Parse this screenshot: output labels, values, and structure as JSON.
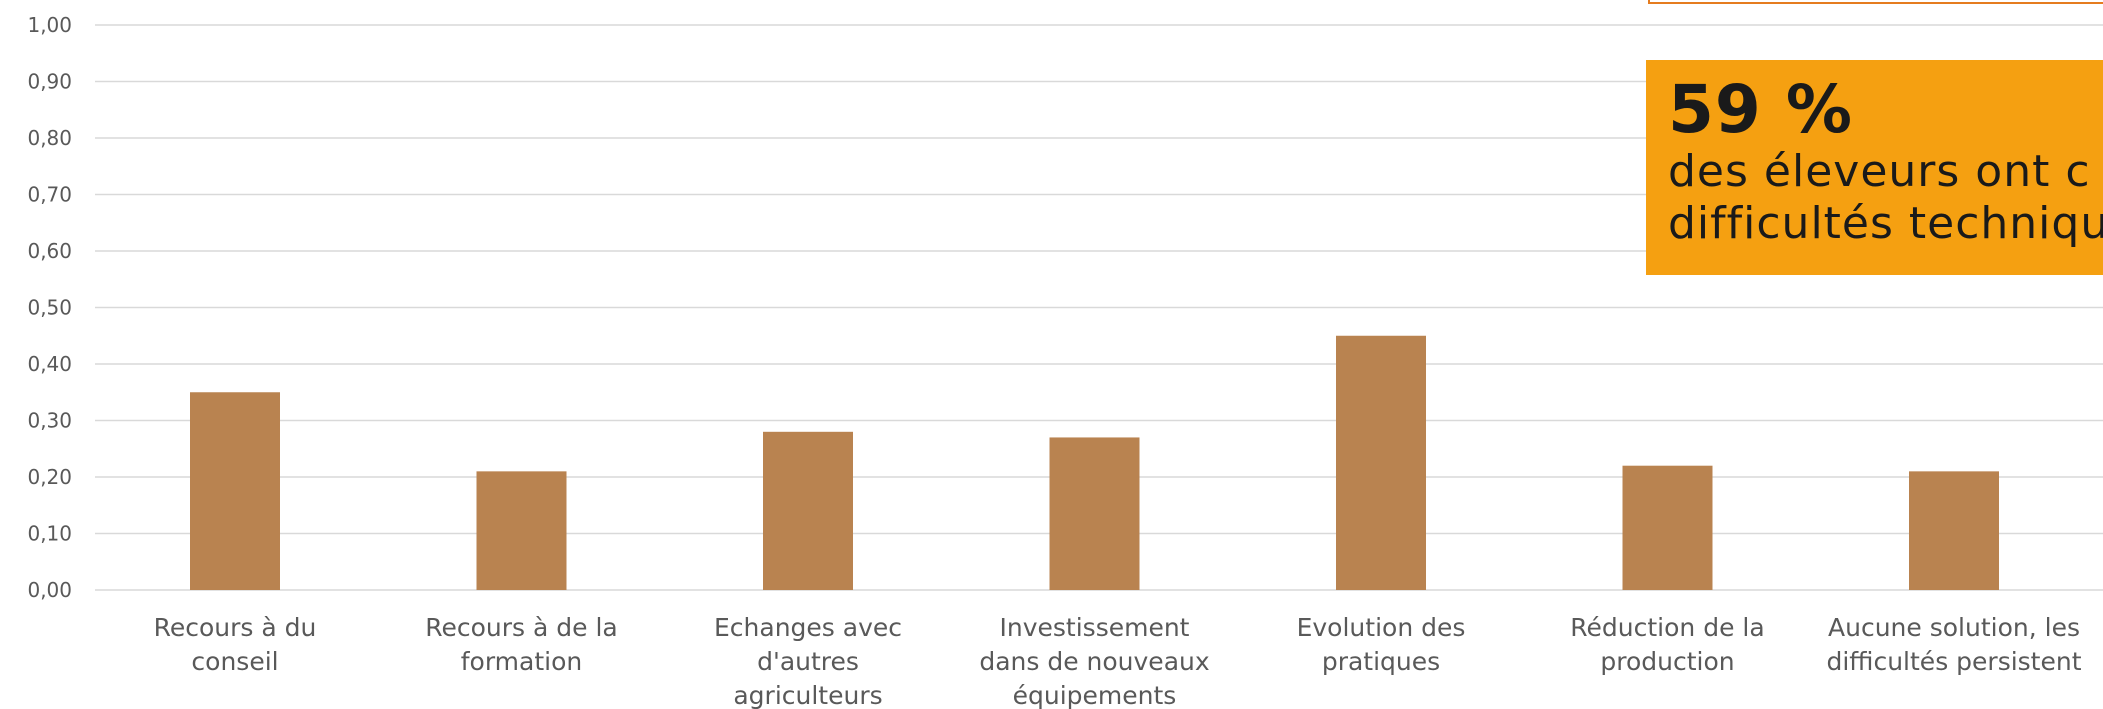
{
  "chart_data": {
    "type": "bar",
    "categories": [
      [
        "Recours à du",
        "conseil"
      ],
      [
        "Recours à de la",
        "formation"
      ],
      [
        "Echanges avec",
        "d'autres",
        "agriculteurs"
      ],
      [
        "Investissement",
        "dans de nouveaux",
        "équipements"
      ],
      [
        "Evolution des",
        "pratiques"
      ],
      [
        "Réduction de la",
        "production"
      ],
      [
        "Aucune solution, les",
        "difficultés persistent"
      ]
    ],
    "values": [
      0.35,
      0.21,
      0.28,
      0.27,
      0.45,
      0.22,
      0.21
    ],
    "ylim": [
      0,
      1
    ],
    "yticks": [
      "0,00",
      "0,10",
      "0,20",
      "0,30",
      "0,40",
      "0,50",
      "0,60",
      "0,70",
      "0,80",
      "0,90",
      "1,00"
    ],
    "grid": true,
    "bar_color": "#b98350",
    "grid_color": "#d9d9d9"
  },
  "callout": {
    "stat": "59 %",
    "line1": "des éleveurs ont c",
    "line2": "difficultés techniqu",
    "background": "#f5a011",
    "border_color": "#e57c1f"
  }
}
